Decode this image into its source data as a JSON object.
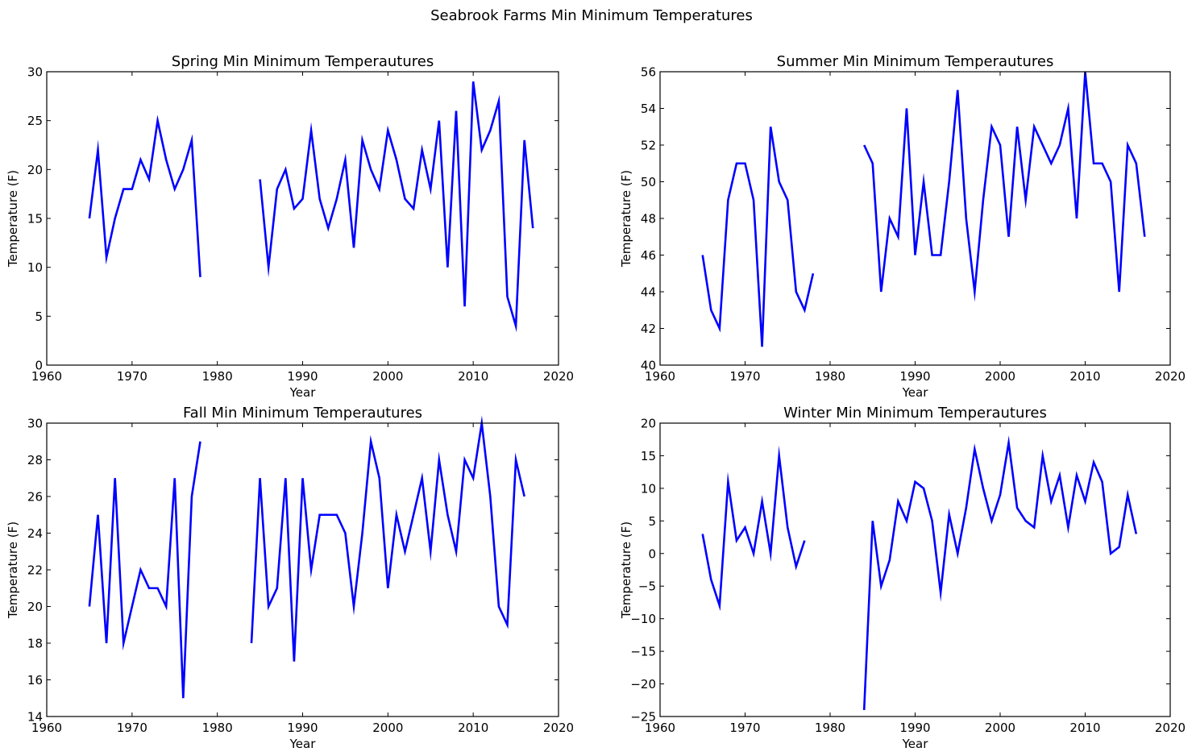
{
  "figure": {
    "suptitle": "Seabrook Farms Min Minimum Temperatures",
    "line_color": "#0000ff"
  },
  "chart_data": [
    {
      "type": "line",
      "title": "Spring Min Minimum Temperautures",
      "xlabel": "Year",
      "ylabel": "Temperature (F)",
      "xlim": [
        1960,
        2020
      ],
      "ylim": [
        0,
        30
      ],
      "xticks": [
        1960,
        1970,
        1980,
        1990,
        2000,
        2010,
        2020
      ],
      "yticks": [
        0,
        5,
        10,
        15,
        20,
        25,
        30
      ],
      "grid": false,
      "series": [
        {
          "x": [
            1965,
            1966,
            1967,
            1968,
            1969,
            1970,
            1971,
            1972,
            1973,
            1974,
            1975,
            1976,
            1977,
            1978,
            1979,
            1980,
            1981,
            1982,
            1983,
            1984,
            1985,
            1986,
            1987,
            1988,
            1989,
            1990,
            1991,
            1992,
            1993,
            1994,
            1995,
            1996,
            1997,
            1998,
            1999,
            2000,
            2001,
            2002,
            2003,
            2004,
            2005,
            2006,
            2007,
            2008,
            2009,
            2010,
            2011,
            2012,
            2013,
            2014,
            2015,
            2016,
            2017
          ],
          "values": [
            15,
            22,
            11,
            15,
            18,
            18,
            21,
            19,
            25,
            21,
            18,
            20,
            23,
            9,
            null,
            null,
            null,
            null,
            null,
            null,
            19,
            10,
            18,
            20,
            16,
            17,
            24,
            17,
            14,
            17,
            21,
            12,
            23,
            20,
            18,
            24,
            21,
            17,
            16,
            22,
            18,
            25,
            10,
            26,
            6,
            29,
            22,
            24,
            27,
            7,
            4,
            23,
            14
          ]
        }
      ]
    },
    {
      "type": "line",
      "title": "Summer Min Minimum Temperautures",
      "xlabel": "Year",
      "ylabel": "Temperature (F)",
      "xlim": [
        1960,
        2020
      ],
      "ylim": [
        40,
        56
      ],
      "xticks": [
        1960,
        1970,
        1980,
        1990,
        2000,
        2010,
        2020
      ],
      "yticks": [
        40,
        42,
        44,
        46,
        48,
        50,
        52,
        54,
        56
      ],
      "grid": false,
      "series": [
        {
          "x": [
            1965,
            1966,
            1967,
            1968,
            1969,
            1970,
            1971,
            1972,
            1973,
            1974,
            1975,
            1976,
            1977,
            1978,
            1979,
            1980,
            1981,
            1982,
            1983,
            1984,
            1985,
            1986,
            1987,
            1988,
            1989,
            1990,
            1991,
            1992,
            1993,
            1994,
            1995,
            1996,
            1997,
            1998,
            1999,
            2000,
            2001,
            2002,
            2003,
            2004,
            2005,
            2006,
            2007,
            2008,
            2009,
            2010,
            2011,
            2012,
            2013,
            2014,
            2015,
            2016,
            2017
          ],
          "values": [
            46,
            43,
            42,
            49,
            51,
            51,
            49,
            41,
            53,
            50,
            49,
            44,
            43,
            45,
            null,
            null,
            null,
            null,
            null,
            52,
            51,
            44,
            48,
            47,
            54,
            46,
            50,
            46,
            46,
            50,
            55,
            48,
            44,
            49,
            53,
            52,
            47,
            53,
            49,
            53,
            52,
            51,
            52,
            54,
            48,
            56,
            51,
            51,
            50,
            44,
            52,
            51,
            47
          ]
        }
      ]
    },
    {
      "type": "line",
      "title": "Fall Min Minimum Temperautures",
      "xlabel": "Year",
      "ylabel": "Temperature (F)",
      "xlim": [
        1960,
        2020
      ],
      "ylim": [
        14,
        30
      ],
      "xticks": [
        1960,
        1970,
        1980,
        1990,
        2000,
        2010,
        2020
      ],
      "yticks": [
        14,
        16,
        18,
        20,
        22,
        24,
        26,
        28,
        30
      ],
      "grid": false,
      "series": [
        {
          "x": [
            1965,
            1966,
            1967,
            1968,
            1969,
            1970,
            1971,
            1972,
            1973,
            1974,
            1975,
            1976,
            1977,
            1978,
            1979,
            1980,
            1981,
            1982,
            1983,
            1984,
            1985,
            1986,
            1987,
            1988,
            1989,
            1990,
            1991,
            1992,
            1993,
            1994,
            1995,
            1996,
            1997,
            1998,
            1999,
            2000,
            2001,
            2002,
            2003,
            2004,
            2005,
            2006,
            2007,
            2008,
            2009,
            2010,
            2011,
            2012,
            2013,
            2014,
            2015,
            2016
          ],
          "values": [
            20,
            25,
            18,
            27,
            18,
            20,
            22,
            21,
            21,
            20,
            27,
            15,
            26,
            29,
            null,
            null,
            null,
            null,
            null,
            18,
            27,
            20,
            21,
            27,
            17,
            27,
            22,
            25,
            25,
            25,
            24,
            20,
            24,
            29,
            27,
            21,
            25,
            23,
            25,
            27,
            23,
            28,
            25,
            23,
            28,
            27,
            30,
            26,
            20,
            19,
            28,
            26
          ]
        }
      ]
    },
    {
      "type": "line",
      "title": "Winter Min Minimum Temperautures",
      "xlabel": "Year",
      "ylabel": "Temperature (F)",
      "xlim": [
        1960,
        2020
      ],
      "ylim": [
        -25,
        20
      ],
      "xticks": [
        1960,
        1970,
        1980,
        1990,
        2000,
        2010,
        2020
      ],
      "yticks": [
        -25,
        -20,
        -15,
        -10,
        -5,
        0,
        5,
        10,
        15,
        20
      ],
      "grid": false,
      "series": [
        {
          "x": [
            1965,
            1966,
            1967,
            1968,
            1969,
            1970,
            1971,
            1972,
            1973,
            1974,
            1975,
            1976,
            1977,
            1978,
            1979,
            1980,
            1981,
            1982,
            1983,
            1984,
            1985,
            1986,
            1987,
            1988,
            1989,
            1990,
            1991,
            1992,
            1993,
            1994,
            1995,
            1996,
            1997,
            1998,
            1999,
            2000,
            2001,
            2002,
            2003,
            2004,
            2005,
            2006,
            2007,
            2008,
            2009,
            2010,
            2011,
            2012,
            2013,
            2014,
            2015,
            2016
          ],
          "values": [
            3,
            -4,
            -8,
            11,
            2,
            4,
            0,
            8,
            0,
            15,
            4,
            -2,
            2,
            null,
            null,
            null,
            null,
            null,
            null,
            -24,
            5,
            -5,
            -1,
            8,
            5,
            11,
            10,
            5,
            -6,
            6,
            0,
            7,
            16,
            10,
            5,
            9,
            17,
            7,
            5,
            4,
            15,
            8,
            12,
            4,
            12,
            8,
            14,
            11,
            0,
            1,
            9,
            3
          ]
        }
      ]
    }
  ]
}
